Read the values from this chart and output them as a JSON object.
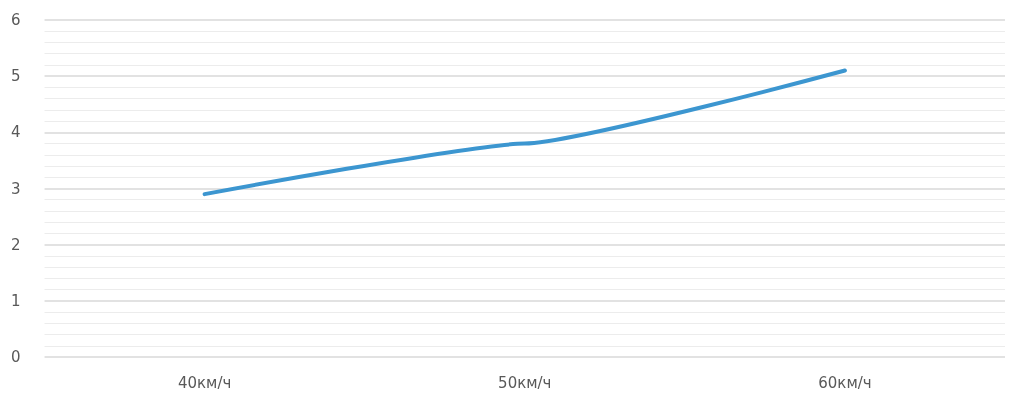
{
  "chart_data": {
    "type": "line",
    "categories": [
      "40км/ч",
      "50км/ч",
      "60км/ч"
    ],
    "series": [
      {
        "color": "#3c96d0",
        "values": [
          2.9,
          3.8,
          5.1
        ]
      }
    ],
    "ylim": [
      0,
      6
    ],
    "yticks": [
      0,
      1,
      2,
      3,
      4,
      5,
      6
    ],
    "grid": "y",
    "marker": "none",
    "line_style": "solid"
  }
}
